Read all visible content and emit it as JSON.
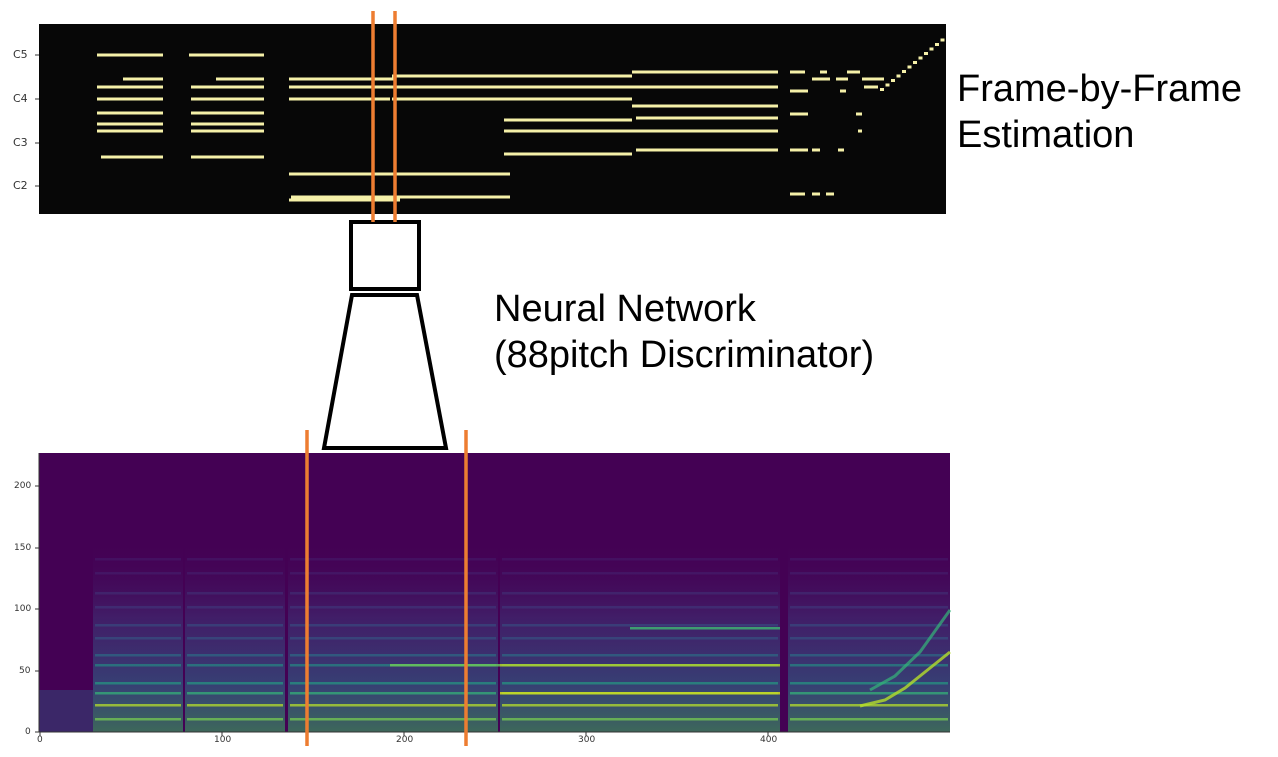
{
  "labels": {
    "frame_by_frame": [
      "Frame-by-Frame",
      "Estimation"
    ],
    "neural_network": [
      "Neural Network",
      "(88pitch Discriminator)"
    ]
  },
  "pianoroll": {
    "yticks": [
      "C5",
      "C4",
      "C3",
      "C2"
    ],
    "background": "#070707",
    "note_color": "#f5f0a8"
  },
  "spectrogram": {
    "yticks": [
      "200",
      "150",
      "100",
      "50",
      "0"
    ],
    "xticks": [
      "0",
      "100",
      "200",
      "300",
      "400"
    ],
    "background": "#440154"
  },
  "colors": {
    "window_lines": "#ed7d31",
    "network_outline": "#000000"
  }
}
